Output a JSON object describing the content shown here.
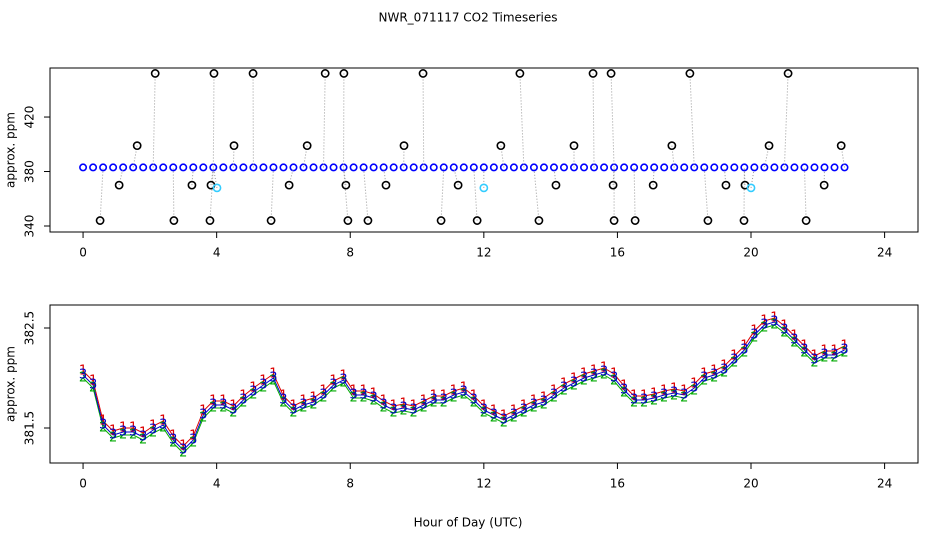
{
  "chart_data": [
    {
      "type": "scatter",
      "title": "NWR_071117  CO2 Timeseries",
      "ylabel": "approx. ppm",
      "x": [
        0,
        0.3,
        0.6,
        0.9,
        1.2,
        1.5,
        1.8,
        2.1,
        2.4,
        2.7,
        3,
        3.3,
        3.6,
        3.9,
        4.2,
        4.5,
        4.8,
        5.1,
        5.4,
        5.7,
        6,
        6.3,
        6.6,
        6.9,
        7.2,
        7.5,
        7.8,
        8.1,
        8.4,
        8.7,
        9,
        9.3,
        9.6,
        9.9,
        10.2,
        10.5,
        10.8,
        11.1,
        11.4,
        11.7,
        12,
        12.3,
        12.6,
        12.9,
        13.2,
        13.5,
        13.8,
        14.1,
        14.4,
        14.7,
        15,
        15.3,
        15.6,
        15.9,
        16.2,
        16.5,
        16.8,
        17.1,
        17.4,
        17.7,
        18,
        18.3,
        18.6,
        18.9,
        19.2,
        19.5,
        19.8,
        20.1,
        20.4,
        20.7,
        21,
        21.3,
        21.6,
        21.9,
        22.2,
        22.5,
        22.8
      ],
      "series": [
        {
          "color": "#0000ff",
          "values": [
            383,
            383,
            383,
            383,
            383,
            383,
            383,
            383,
            383,
            383,
            383,
            383,
            383,
            383,
            383,
            383,
            383,
            383,
            383,
            383,
            383,
            383,
            383,
            383,
            383,
            383,
            383,
            383,
            383,
            383,
            383,
            383,
            383,
            383,
            383,
            383,
            383,
            383,
            383,
            383,
            383,
            383,
            383,
            383,
            383,
            383,
            383,
            383,
            383,
            383,
            383,
            383,
            383,
            383,
            383,
            383,
            383,
            383,
            383,
            383,
            383,
            383,
            383,
            383,
            383,
            383,
            383,
            383,
            383,
            383,
            383,
            383,
            383,
            383,
            383,
            383,
            383
          ]
        },
        {
          "color": "#000000",
          "x": [
            0.51,
            1.08,
            1.62,
            2.16,
            2.72,
            3.26,
            3.8,
            3.83,
            3.92,
            4.52,
            5.09,
            5.63,
            6.17,
            6.71,
            7.25,
            7.81,
            7.87,
            7.93,
            8.53,
            9.07,
            9.61,
            10.18,
            10.72,
            11.23,
            11.8,
            12.51,
            13.08,
            13.65,
            14.16,
            14.7,
            15.27,
            15.81,
            15.87,
            15.9,
            16.53,
            17.07,
            17.63,
            18.17,
            18.71,
            19.25,
            19.79,
            19.82,
            20.54,
            21.11,
            21.65,
            22.19,
            22.7
          ],
          "values": [
            344,
            370,
            399,
            452,
            344,
            370,
            344,
            370,
            452,
            399,
            452,
            344,
            370,
            399,
            452,
            452,
            370,
            344,
            344,
            370,
            399,
            452,
            344,
            370,
            344,
            399,
            452,
            344,
            370,
            399,
            452,
            452,
            370,
            344,
            344,
            370,
            399,
            452,
            344,
            370,
            344,
            370,
            399,
            452,
            344,
            370,
            399
          ]
        },
        {
          "color": "#33ccff",
          "x": [
            4.01,
            12.0,
            20.0
          ],
          "values": [
            368,
            368,
            368
          ]
        }
      ],
      "xlim": [
        -0.99,
        25
      ],
      "xticks": [
        0,
        4,
        8,
        12,
        16,
        20,
        24
      ],
      "ylim": [
        335.6,
        456
      ],
      "yticks": [
        340,
        380,
        420
      ]
    },
    {
      "type": "symbols",
      "ylabel": "approx. ppm",
      "xlabel": "Hour of Day (UTC)",
      "x": [
        0,
        0.3,
        0.6,
        0.9,
        1.2,
        1.5,
        1.8,
        2.1,
        2.4,
        2.7,
        3,
        3.3,
        3.6,
        3.9,
        4.2,
        4.5,
        4.8,
        5.1,
        5.4,
        5.7,
        6,
        6.3,
        6.6,
        6.9,
        7.2,
        7.5,
        7.8,
        8.1,
        8.4,
        8.7,
        9,
        9.3,
        9.6,
        9.9,
        10.2,
        10.5,
        10.8,
        11.1,
        11.4,
        11.7,
        12,
        12.3,
        12.6,
        12.9,
        13.2,
        13.5,
        13.8,
        14.1,
        14.4,
        14.7,
        15,
        15.3,
        15.6,
        15.9,
        16.2,
        16.5,
        16.8,
        17.1,
        17.4,
        17.7,
        18,
        18.3,
        18.6,
        18.9,
        19.2,
        19.5,
        19.8,
        20.1,
        20.4,
        20.7,
        21,
        21.3,
        21.6,
        21.9,
        22.2,
        22.5,
        22.8
      ],
      "series": [
        {
          "symbol": "1",
          "color": "#dd0000",
          "values": [
            382.07,
            381.97,
            381.57,
            381.47,
            381.5,
            381.5,
            381.45,
            381.52,
            381.57,
            381.42,
            381.32,
            381.42,
            381.67,
            381.77,
            381.77,
            381.72,
            381.82,
            381.9,
            381.97,
            382.04,
            381.82,
            381.72,
            381.77,
            381.8,
            381.87,
            381.97,
            382.02,
            381.87,
            381.87,
            381.84,
            381.77,
            381.72,
            381.74,
            381.72,
            381.77,
            381.82,
            381.82,
            381.87,
            381.9,
            381.82,
            381.72,
            381.67,
            381.62,
            381.67,
            381.72,
            381.77,
            381.8,
            381.87,
            381.94,
            381.99,
            382.04,
            382.07,
            382.1,
            382.04,
            381.92,
            381.82,
            381.82,
            381.84,
            381.87,
            381.89,
            381.87,
            381.94,
            382.04,
            382.07,
            382.12,
            382.22,
            382.32,
            382.47,
            382.57,
            382.6,
            382.52,
            382.42,
            382.32,
            382.22,
            382.27,
            382.27,
            382.32
          ]
        },
        {
          "symbol": "2",
          "color": "#00aa00",
          "values": [
            382.0,
            381.9,
            381.5,
            381.4,
            381.43,
            381.43,
            381.38,
            381.45,
            381.5,
            381.35,
            381.25,
            381.35,
            381.6,
            381.7,
            381.7,
            381.65,
            381.75,
            381.83,
            381.9,
            381.97,
            381.75,
            381.65,
            381.7,
            381.73,
            381.8,
            381.9,
            381.95,
            381.8,
            381.8,
            381.77,
            381.7,
            381.65,
            381.67,
            381.65,
            381.7,
            381.75,
            381.75,
            381.8,
            381.83,
            381.75,
            381.65,
            381.6,
            381.55,
            381.6,
            381.65,
            381.7,
            381.73,
            381.8,
            381.87,
            381.92,
            381.97,
            382.0,
            382.03,
            381.97,
            381.85,
            381.75,
            381.75,
            381.77,
            381.8,
            381.82,
            381.8,
            381.87,
            381.97,
            382.0,
            382.05,
            382.15,
            382.25,
            382.4,
            382.5,
            382.53,
            382.45,
            382.35,
            382.25,
            382.15,
            382.2,
            382.2,
            382.25
          ]
        },
        {
          "symbol": "3",
          "color": "#0000cc",
          "values": [
            382.03,
            381.93,
            381.53,
            381.43,
            381.46,
            381.46,
            381.41,
            381.48,
            381.53,
            381.38,
            381.28,
            381.38,
            381.63,
            381.73,
            381.73,
            381.68,
            381.78,
            381.86,
            381.93,
            382.0,
            381.78,
            381.68,
            381.73,
            381.76,
            381.83,
            381.93,
            381.98,
            381.83,
            381.83,
            381.8,
            381.73,
            381.68,
            381.7,
            381.68,
            381.73,
            381.78,
            381.78,
            381.83,
            381.86,
            381.78,
            381.68,
            381.63,
            381.58,
            381.63,
            381.68,
            381.73,
            381.76,
            381.83,
            381.9,
            381.95,
            382.0,
            382.03,
            382.06,
            382.0,
            381.88,
            381.78,
            381.78,
            381.8,
            381.83,
            381.85,
            381.83,
            381.9,
            382.0,
            382.03,
            382.08,
            382.18,
            382.28,
            382.43,
            382.53,
            382.56,
            382.48,
            382.38,
            382.28,
            382.18,
            382.23,
            382.23,
            382.28
          ]
        }
      ],
      "xlim": [
        -0.99,
        25
      ],
      "xticks": [
        0,
        4,
        8,
        12,
        16,
        20,
        24
      ],
      "ylim": [
        381.15,
        382.73
      ],
      "yticks": [
        381.5,
        382.5
      ]
    }
  ]
}
